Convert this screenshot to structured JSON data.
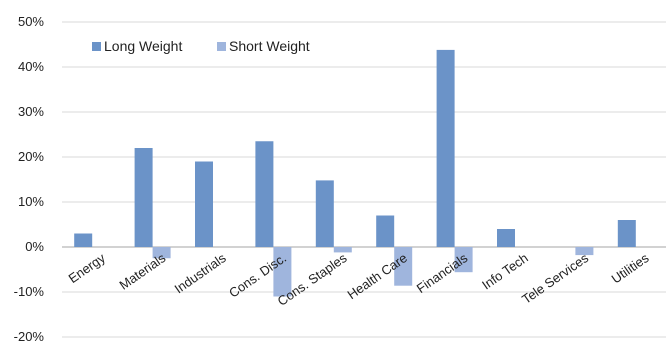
{
  "chart_data": {
    "type": "bar",
    "title": "",
    "xlabel": "",
    "ylabel": "",
    "categories": [
      "Energy",
      "Materials",
      "Industrials",
      "Cons. Disc.",
      "Cons. Staples",
      "Health Care",
      "Financials",
      "Info Tech",
      "Tele Services",
      "Utilities"
    ],
    "series": [
      {
        "name": "Long Weight",
        "color": "#6b93c8",
        "values": [
          3.0,
          22.0,
          19.0,
          23.5,
          14.8,
          7.0,
          43.8,
          4.0,
          0.0,
          6.0
        ]
      },
      {
        "name": "Short Weight",
        "color": "#9fb5dd",
        "values": [
          0.0,
          -2.5,
          0.0,
          -11.0,
          -1.2,
          -8.6,
          -5.6,
          0.0,
          -1.8,
          0.0
        ]
      }
    ],
    "ylim": [
      -20,
      50
    ],
    "yticks": [
      -20,
      -10,
      0,
      10,
      20,
      30,
      40,
      50
    ],
    "ytick_labels": [
      "-20%",
      "-10%",
      "0%",
      "10%",
      "20%",
      "30%",
      "40%",
      "50%"
    ],
    "grid": true,
    "legend_position": "top-left"
  }
}
